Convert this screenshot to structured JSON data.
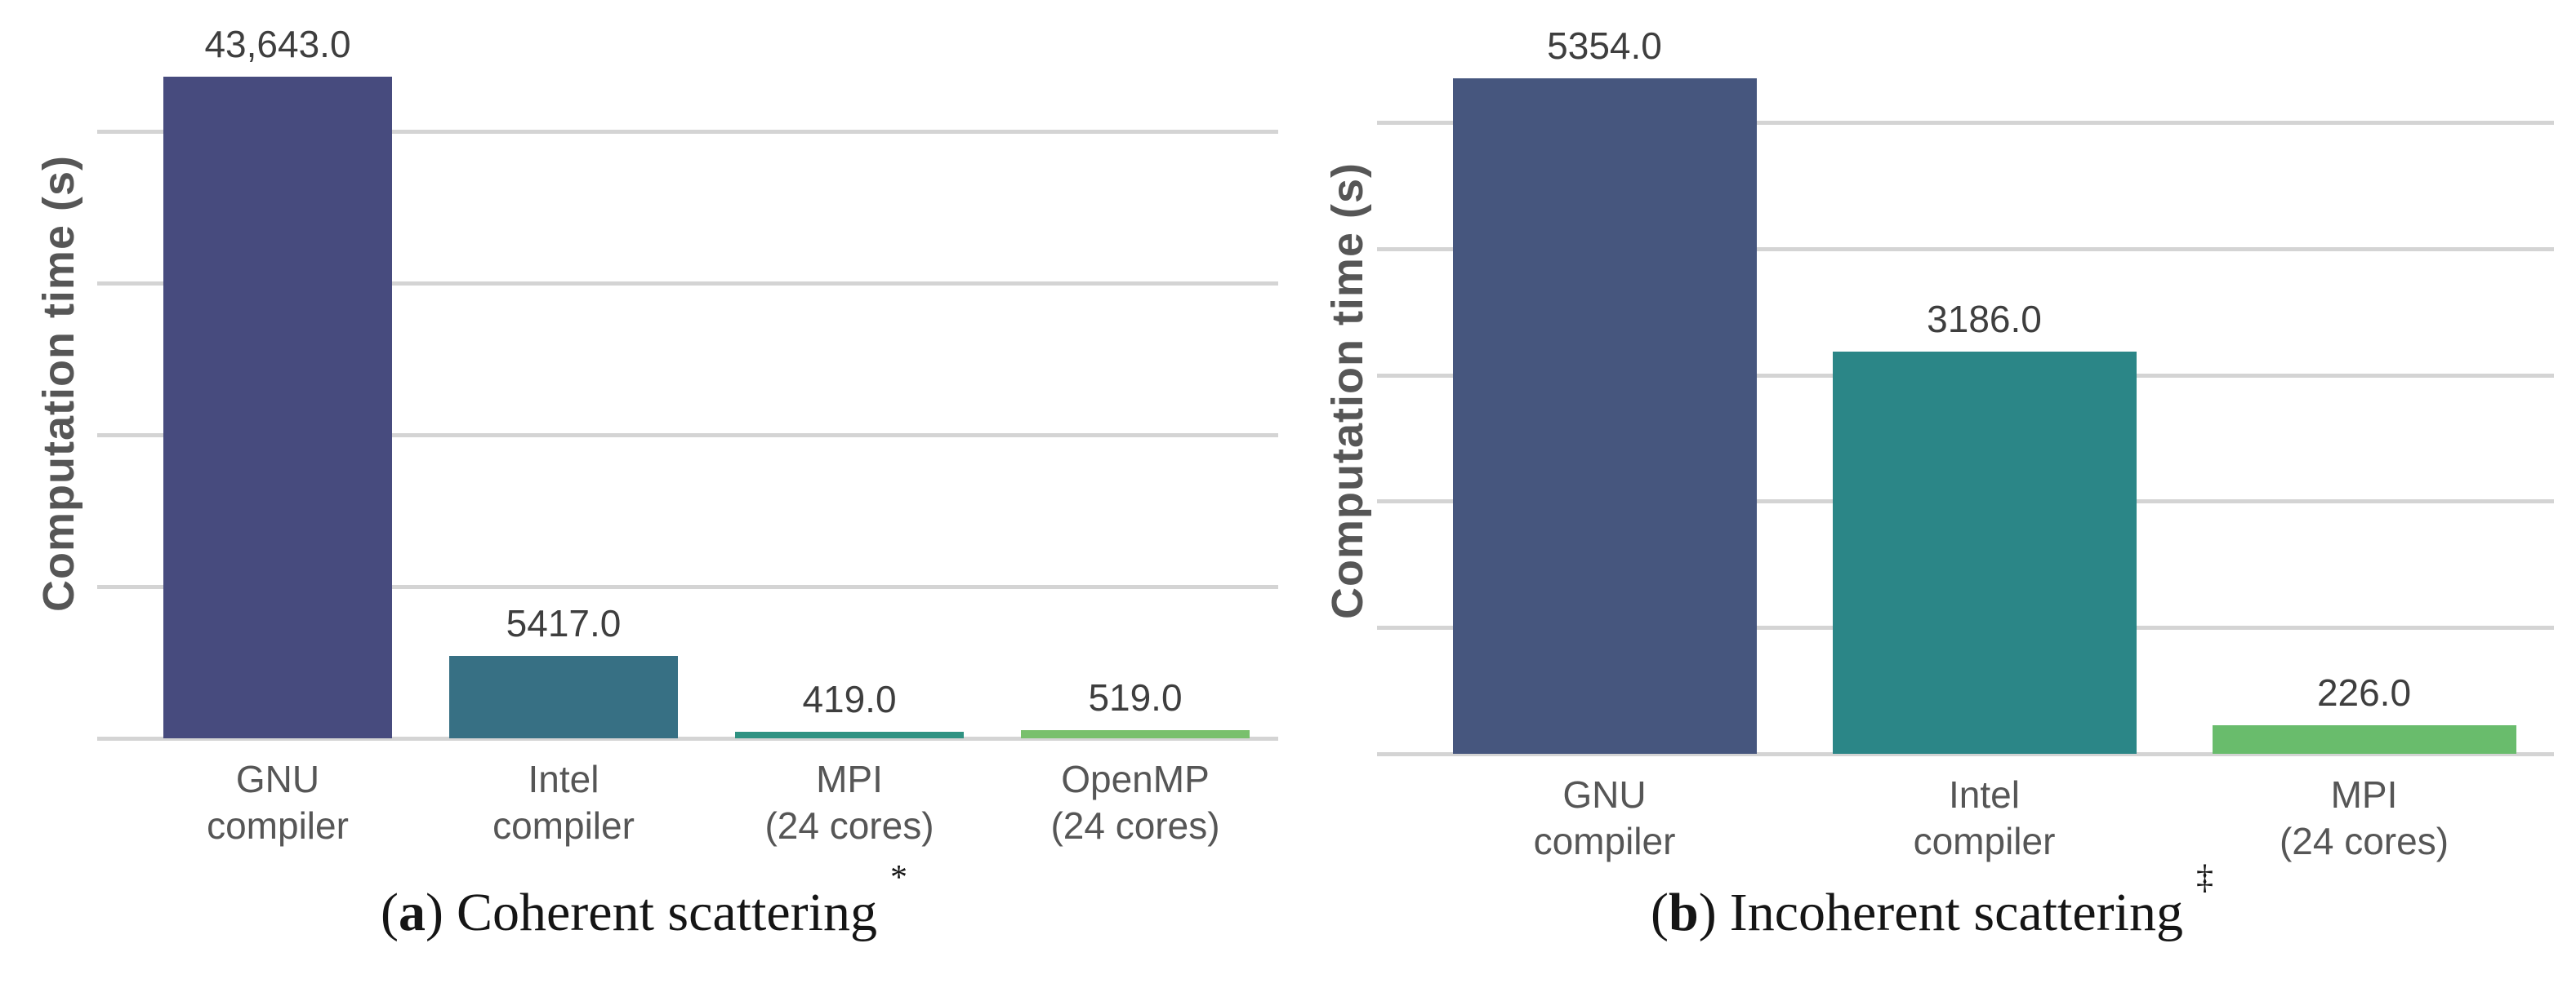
{
  "styles": {
    "background": "#ffffff",
    "grid_color": "#d4d4d4",
    "bar_label_color": "#3e3e3e",
    "tick_label_color": "#565656",
    "axis_label_color": "#565656",
    "caption_color": "#151515"
  },
  "chart_data": [
    {
      "type": "bar",
      "panel": "a",
      "title": "(a) Coherent scattering *",
      "caption": {
        "open": "(",
        "letter": "a",
        "close": ")",
        "text": "Coherent scattering",
        "superscript": "*"
      },
      "ylabel": "Computation time (s)",
      "xlabel": "",
      "categories": [
        "GNU compiler",
        "Intel compiler",
        "MPI (24 cores)",
        "OpenMP (24 cores)"
      ],
      "category_lines": [
        [
          "GNU",
          "compiler"
        ],
        [
          "Intel",
          "compiler"
        ],
        [
          "MPI",
          "(24 cores)"
        ],
        [
          "OpenMP",
          "(24 cores)"
        ]
      ],
      "values": [
        43643.0,
        5417.0,
        419.0,
        519.0
      ],
      "value_labels": [
        "43,643.0",
        "5417.0",
        "419.0",
        "519.0"
      ],
      "bar_colors": [
        "#474b7e",
        "#377084",
        "#2f9282",
        "#79c06d"
      ],
      "ylim": [
        0,
        46800
      ],
      "yticks": [
        0,
        10000,
        20000,
        30000,
        40000
      ],
      "ytick_labels_shown": false,
      "grid": "horizontal",
      "legend": "none"
    },
    {
      "type": "bar",
      "panel": "b",
      "title": "(b) Incoherent scattering ‡",
      "caption": {
        "open": "(",
        "letter": "b",
        "close": ")",
        "text": "Incoherent scattering",
        "superscript": "‡"
      },
      "ylabel": "Computation time (s)",
      "xlabel": "",
      "categories": [
        "GNU compiler",
        "Intel compiler",
        "MPI (24 cores)"
      ],
      "category_lines": [
        [
          "GNU",
          "compiler"
        ],
        [
          "Intel",
          "compiler"
        ],
        [
          "MPI",
          "(24 cores)"
        ]
      ],
      "values": [
        5354.0,
        3186.0,
        226.0
      ],
      "value_labels": [
        "5354.0",
        "3186.0",
        "226.0"
      ],
      "bar_colors": [
        "#46567e",
        "#2b8687",
        "#69bc6c"
      ],
      "ylim": [
        0,
        5750
      ],
      "yticks": [
        0,
        1000,
        2000,
        3000,
        4000,
        5000
      ],
      "ytick_labels_shown": false,
      "grid": "horizontal",
      "legend": "none"
    }
  ]
}
